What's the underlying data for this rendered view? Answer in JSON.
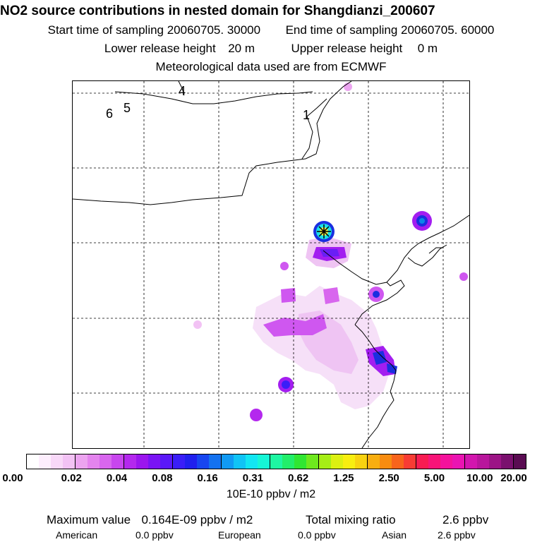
{
  "header": {
    "title": "NO2 source contributions in nested domain for Shangdianzi_200607",
    "start_label": "Start time of sampling 20060705. 30000",
    "end_label": "End time of sampling 20060705. 60000",
    "lower_label": "Lower release height",
    "lower_value": "20 m",
    "upper_label": "Upper release height",
    "upper_value": "0 m",
    "met_label": "Meteorological data used are from ECMWF"
  },
  "map": {
    "region_labels": [
      "4",
      "6",
      "5",
      "1"
    ],
    "station_marker": "receptor-star",
    "plume_colors": [
      "#f4d6f6",
      "#eaa6f0",
      "#cf57f0",
      "#a31ef0",
      "#6a1ef5",
      "#1a2fe0",
      "#0a86e8",
      "#18e0e8",
      "#f0f040"
    ]
  },
  "colorbar": {
    "colors": [
      "#ffffff",
      "#fdeefd",
      "#f8d8f8",
      "#f2c2f4",
      "#eca4f0",
      "#e484ee",
      "#d866ee",
      "#c846ee",
      "#b428ee",
      "#9b16ee",
      "#7a14f4",
      "#5a18f8",
      "#3a1ef8",
      "#2020ee",
      "#1846f0",
      "#1472f0",
      "#109af4",
      "#10c4f6",
      "#12e6f2",
      "#16f6d6",
      "#1ef6a2",
      "#22ee6a",
      "#30e632",
      "#6ee81e",
      "#a6ee16",
      "#dcf012",
      "#f8ee10",
      "#f8d210",
      "#f8ae10",
      "#f88c10",
      "#f8641c",
      "#f83c34",
      "#f81c52",
      "#f81478",
      "#f4129c",
      "#ea14b2",
      "#d216ae",
      "#b8169c",
      "#9c1486",
      "#7a106e",
      "#5a0c52"
    ],
    "tick_labels": [
      "0.00",
      "0.02",
      "0.04",
      "0.08",
      "0.16",
      "0.31",
      "0.62",
      "1.25",
      "2.50",
      "5.00",
      "10.00",
      "20.00"
    ],
    "unit": "10E-10 ppbv / m2"
  },
  "footer": {
    "max_label": "Maximum value",
    "max_value": "0.164E-09 ppbv / m2",
    "total_label": "Total mixing ratio",
    "total_value": "2.6 ppbv",
    "american_label": "American",
    "american_value": "0.0 ppbv",
    "european_label": "European",
    "european_value": "0.0 ppbv",
    "asian_label": "Asian",
    "asian_value": "2.6 ppbv"
  }
}
